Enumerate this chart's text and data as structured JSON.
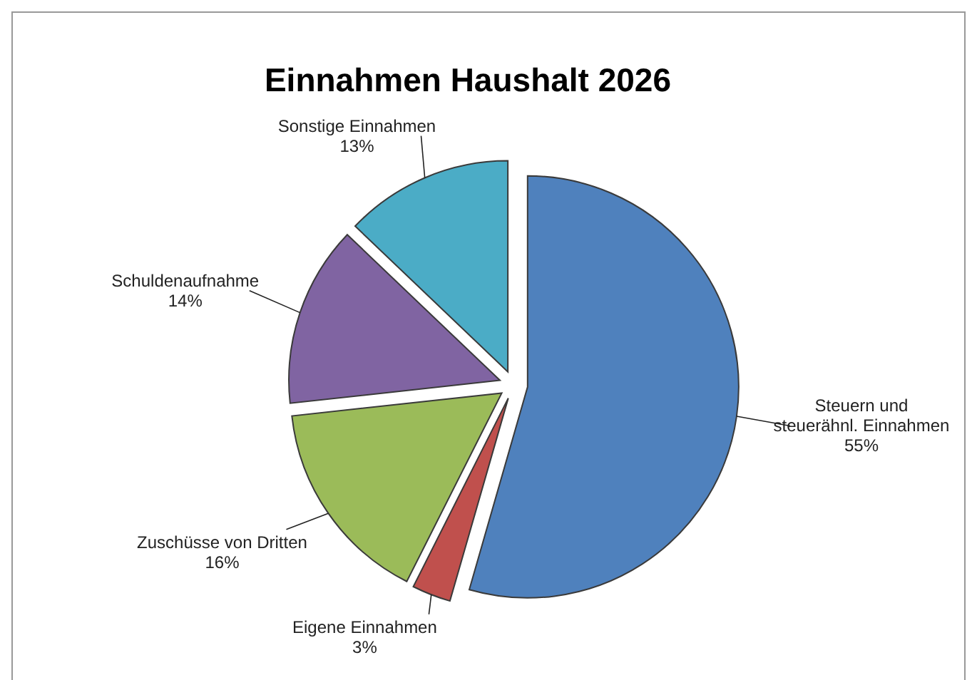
{
  "chart_data": {
    "type": "pie",
    "title": "Einnahmen Haushalt 2026",
    "categories": [
      "Steuern und steuerähnl. Einnahmen",
      "Eigene Einnahmen",
      "Zuschüsse von Dritten",
      "Schuldenaufnahme",
      "Sonstige Einnahmen"
    ],
    "values": [
      55,
      3,
      16,
      14,
      13
    ],
    "value_labels": [
      "55%",
      "3%",
      "16%",
      "14%",
      "13%"
    ],
    "colors": [
      "#4f81bd",
      "#c0504d",
      "#9bbb59",
      "#8064a2",
      "#4bacc6"
    ]
  }
}
